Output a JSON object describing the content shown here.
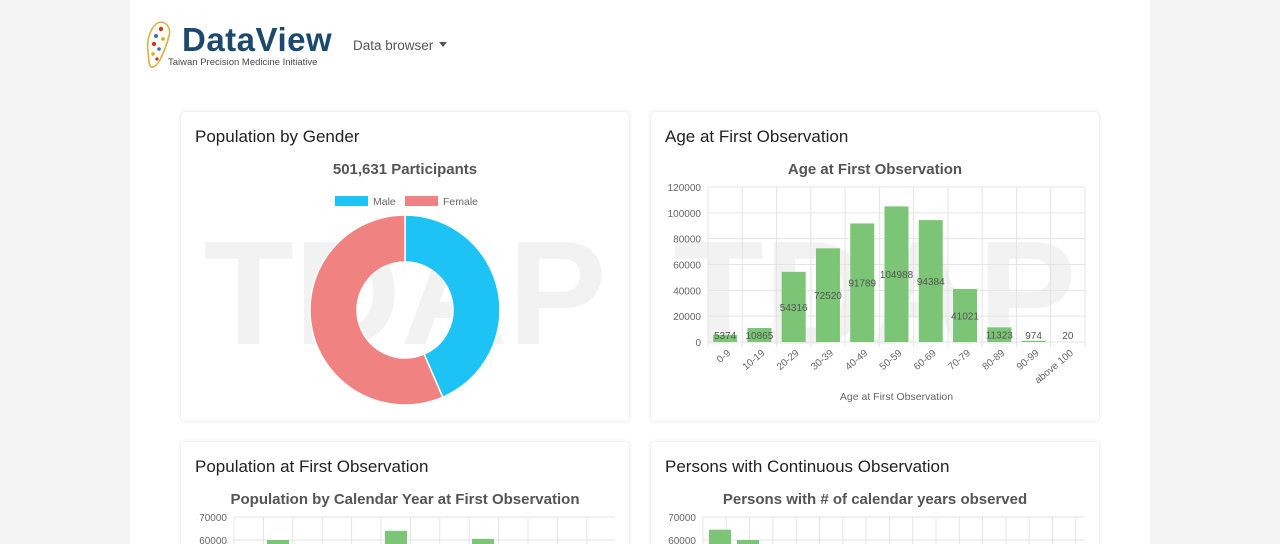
{
  "app": {
    "logo_title": "DataView",
    "logo_subtitle": "Taiwan Precision Medicine Initiative",
    "nav_menu_label": "Data browser"
  },
  "watermark": "TDAP",
  "colors": {
    "male": "#1ec3f5",
    "female": "#f08282",
    "bar": "#7cc576",
    "grid": "#e4e4e4"
  },
  "cards": {
    "gender": {
      "title": "Population by Gender"
    },
    "age": {
      "title": "Age at First Observation"
    },
    "year": {
      "title": "Population at First Observation"
    },
    "continuous": {
      "title": "Persons with Continuous Observation"
    }
  },
  "chart_data": [
    {
      "type": "pie",
      "title": "501,631 Participants",
      "legend": [
        "Male",
        "Female"
      ],
      "legend_position": "top",
      "slices": [
        {
          "label": "Male",
          "value": 0.435,
          "color": "#1ec3f5"
        },
        {
          "label": "Female",
          "value": 0.565,
          "color": "#f08282"
        }
      ]
    },
    {
      "type": "bar",
      "title": "Age at First Observation",
      "xlabel": "Age at First Observation",
      "ylabel": "",
      "ylim": [
        0,
        120000
      ],
      "yticks": [
        0,
        20000,
        40000,
        60000,
        80000,
        100000,
        120000
      ],
      "categories": [
        "0-9",
        "10-19",
        "20-29",
        "30-39",
        "40-49",
        "50-59",
        "60-69",
        "70-79",
        "80-89",
        "90-99",
        "above 100"
      ],
      "values": [
        5374,
        10865,
        54316,
        72520,
        91789,
        104988,
        94384,
        41021,
        11323,
        974,
        20
      ],
      "grid": true
    },
    {
      "type": "bar",
      "title": "Population by Calendar Year at First Observation",
      "ylim": [
        0,
        70000
      ],
      "yticks": [
        60000,
        70000
      ],
      "visible_values": [
        60000,
        64000,
        60500
      ],
      "grid": true
    },
    {
      "type": "bar",
      "title": "Persons with # of calendar years observed",
      "ylim": [
        0,
        70000
      ],
      "yticks": [
        60000,
        70000
      ],
      "visible_values": [
        64500,
        60000
      ],
      "grid": true
    }
  ]
}
